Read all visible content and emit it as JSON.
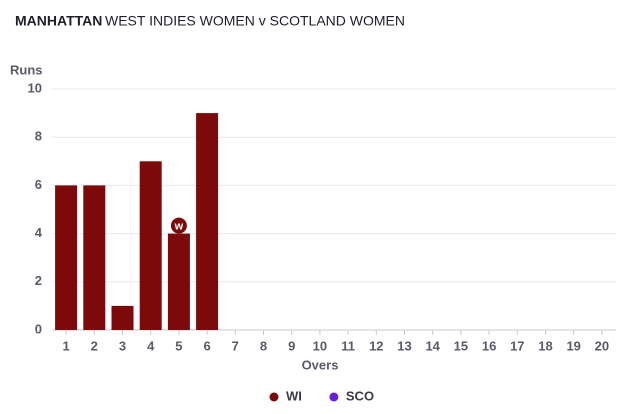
{
  "chart_data": {
    "type": "bar",
    "title": "MANHATTAN",
    "subtitle": "WEST INDIES WOMEN v SCOTLAND WOMEN",
    "y_label": "Runs",
    "x_label": "Overs",
    "categories": [
      "1",
      "2",
      "3",
      "4",
      "5",
      "6",
      "7",
      "8",
      "9",
      "10",
      "11",
      "12",
      "13",
      "14",
      "15",
      "16",
      "17",
      "18",
      "19",
      "20"
    ],
    "series": [
      {
        "name": "WI",
        "color": "#7d0a0a",
        "values": [
          6,
          6,
          1,
          7,
          4,
          9,
          null,
          null,
          null,
          null,
          null,
          null,
          null,
          null,
          null,
          null,
          null,
          null,
          null,
          null
        ]
      },
      {
        "name": "SCO",
        "color": "#6a1fd0",
        "values": [
          null,
          null,
          null,
          null,
          null,
          null,
          null,
          null,
          null,
          null,
          null,
          null,
          null,
          null,
          null,
          null,
          null,
          null,
          null,
          null
        ]
      }
    ],
    "annotations": [
      {
        "label": "w",
        "category": "5",
        "series": "WI"
      }
    ],
    "ylim": [
      0,
      10
    ],
    "yticks": [
      0,
      2,
      4,
      6,
      8,
      10
    ],
    "grid": true,
    "legend": "bottom"
  }
}
